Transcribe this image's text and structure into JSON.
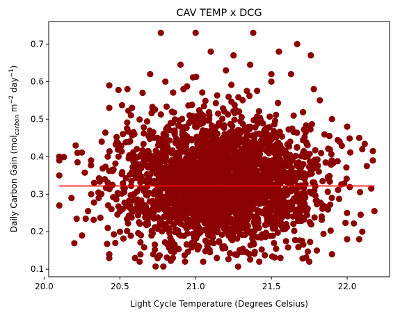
{
  "chart_data": {
    "type": "scatter",
    "title": "CAV TEMP x DCG",
    "xlabel": "Light Cycle Temperature (Degrees Celsius)",
    "ylabel_parts": {
      "main": "Daily Carbon Gain (mol",
      "sub": "carbon",
      "mid1": " m",
      "sup1": "−2",
      "mid2": " day",
      "sup2": "−1",
      "end": ")"
    },
    "xlim": [
      20.03,
      22.28
    ],
    "ylim": [
      0.08,
      0.76
    ],
    "xticks": [
      20.0,
      20.5,
      21.0,
      21.5,
      22.0
    ],
    "xtick_labels": [
      "20.0",
      "20.5",
      "21.0",
      "21.5",
      "22.0"
    ],
    "yticks": [
      0.1,
      0.2,
      0.3,
      0.4,
      0.5,
      0.6,
      0.7
    ],
    "ytick_labels": [
      "0.1",
      "0.2",
      "0.3",
      "0.4",
      "0.5",
      "0.6",
      "0.7"
    ],
    "grid": false,
    "point_color": "#8b0000",
    "fit_line_color": "#ff0000",
    "fit_line": {
      "x": [
        20.1,
        22.18
      ],
      "y": [
        0.322,
        0.322
      ]
    },
    "distribution": {
      "x_min": 20.1,
      "x_max": 22.18,
      "x_center": 21.15,
      "y_center": 0.33,
      "y_min": 0.107,
      "y_max": 0.73
    },
    "points": [
      [
        20.77,
        0.73
      ],
      [
        21.0,
        0.73
      ],
      [
        21.38,
        0.73
      ],
      [
        21.1,
        0.68
      ],
      [
        21.55,
        0.68
      ],
      [
        21.67,
        0.7
      ],
      [
        21.76,
        0.67
      ],
      [
        21.25,
        0.67
      ],
      [
        21.36,
        0.645
      ],
      [
        20.9,
        0.645
      ],
      [
        20.1,
        0.27
      ],
      [
        20.1,
        0.35
      ],
      [
        20.1,
        0.39
      ],
      [
        20.1,
        0.4
      ],
      [
        20.18,
        0.29
      ],
      [
        20.25,
        0.19
      ],
      [
        20.22,
        0.41
      ],
      [
        20.22,
        0.385
      ],
      [
        20.29,
        0.255
      ],
      [
        20.31,
        0.3
      ],
      [
        20.33,
        0.33
      ],
      [
        20.43,
        0.14
      ],
      [
        20.43,
        0.13
      ],
      [
        20.43,
        0.59
      ],
      [
        20.43,
        0.53
      ],
      [
        20.47,
        0.17
      ],
      [
        20.38,
        0.44
      ],
      [
        20.55,
        0.58
      ],
      [
        20.58,
        0.53
      ],
      [
        20.6,
        0.13
      ],
      [
        20.63,
        0.12
      ],
      [
        20.72,
        0.14
      ],
      [
        20.85,
        0.13
      ],
      [
        21.05,
        0.12
      ],
      [
        21.14,
        0.13
      ],
      [
        21.28,
        0.107
      ],
      [
        21.42,
        0.12
      ],
      [
        21.56,
        0.13
      ],
      [
        21.75,
        0.12
      ],
      [
        21.8,
        0.15
      ],
      [
        21.9,
        0.14
      ],
      [
        22.0,
        0.18
      ],
      [
        22.08,
        0.18
      ],
      [
        22.1,
        0.2
      ],
      [
        22.18,
        0.255
      ],
      [
        22.17,
        0.415
      ],
      [
        22.17,
        0.39
      ],
      [
        22.13,
        0.375
      ],
      [
        22.1,
        0.42
      ],
      [
        22.08,
        0.45
      ],
      [
        22.0,
        0.48
      ],
      [
        21.95,
        0.44
      ],
      [
        21.9,
        0.5
      ],
      [
        21.82,
        0.55
      ],
      [
        21.78,
        0.58
      ],
      [
        21.63,
        0.62
      ],
      [
        21.5,
        0.6
      ],
      [
        20.92,
        0.58
      ],
      [
        20.8,
        0.6
      ],
      [
        20.7,
        0.62
      ],
      [
        20.65,
        0.57
      ],
      [
        20.52,
        0.46
      ],
      [
        20.48,
        0.44
      ],
      [
        20.42,
        0.4
      ],
      [
        20.4,
        0.34
      ],
      [
        20.36,
        0.29
      ],
      [
        20.42,
        0.21
      ],
      [
        20.5,
        0.2
      ],
      [
        21.5,
        0.62
      ],
      [
        21.2,
        0.63
      ]
    ]
  }
}
